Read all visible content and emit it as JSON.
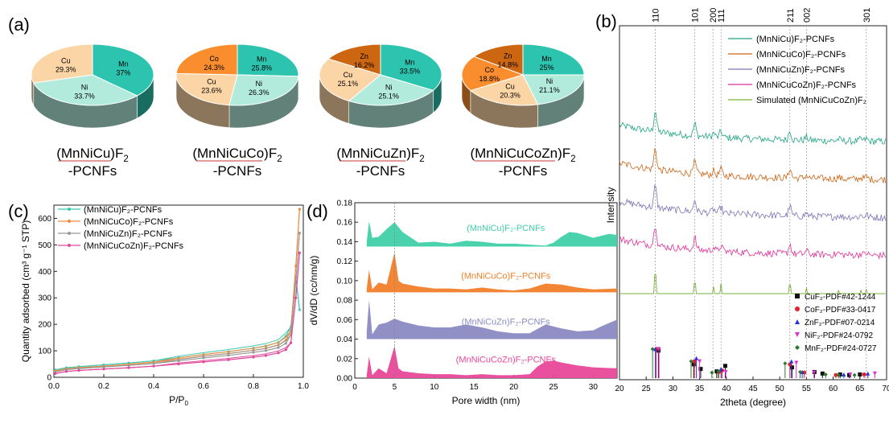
{
  "panel_labels": {
    "a": "(a)",
    "b": "(b)",
    "c": "(c)",
    "d": "(d)"
  },
  "chart_data": [
    {
      "type": "pie",
      "panel": "(a)",
      "pies": [
        {
          "name_main": "(MnNiCu)F",
          "name_sub": "2",
          "name_line2": "-PCNFs",
          "slices": [
            {
              "label": "Mn",
              "value": 37,
              "text": "37%",
              "color": "#2cc4ae"
            },
            {
              "label": "Ni",
              "value": 33.7,
              "text": "33.7%",
              "color": "#b2eadc"
            },
            {
              "label": "Cu",
              "value": 29.3,
              "text": "29.3%",
              "color": "#fcd5a6"
            }
          ]
        },
        {
          "name_main": "(MnNiCuCo)F",
          "name_sub": "2",
          "name_line2": "-PCNFs",
          "slices": [
            {
              "label": "Mn",
              "value": 25.8,
              "text": "25.8%",
              "color": "#2cc4ae"
            },
            {
              "label": "Ni",
              "value": 26.3,
              "text": "26.3%",
              "color": "#b2eadc"
            },
            {
              "label": "Cu",
              "value": 23.6,
              "text": "23.6%",
              "color": "#fcd5a6"
            },
            {
              "label": "Co",
              "value": 24.3,
              "text": "24.3%",
              "color": "#fa8e2e"
            }
          ]
        },
        {
          "name_main": "(MnNiCuZn)F",
          "name_sub": "2",
          "name_line2": "-PCNFs",
          "slices": [
            {
              "label": "Mn",
              "value": 33.5,
              "text": "33.5%",
              "color": "#2cc4ae"
            },
            {
              "label": "Ni",
              "value": 25.1,
              "text": "25.1%",
              "color": "#b2eadc"
            },
            {
              "label": "Cu",
              "value": 25.1,
              "text": "25.1%",
              "color": "#fcd5a6"
            },
            {
              "label": "Zn",
              "value": 16.2,
              "text": "16.2%",
              "color": "#cc6611"
            }
          ]
        },
        {
          "name_main": "(MnNiCuCoZn)F",
          "name_sub": "2",
          "name_line2": "-PCNFs",
          "slices": [
            {
              "label": "Mn",
              "value": 25,
              "text": "25%",
              "color": "#2cc4ae"
            },
            {
              "label": "Ni",
              "value": 21.1,
              "text": "21.1%",
              "color": "#b2eadc"
            },
            {
              "label": "Cu",
              "value": 20.3,
              "text": "20.3%",
              "color": "#fcd5a6"
            },
            {
              "label": "Co",
              "value": 18.8,
              "text": "18.8%",
              "color": "#fa8e2e"
            },
            {
              "label": "Zn",
              "value": 14.8,
              "text": "14.8%",
              "color": "#cc6611"
            }
          ]
        }
      ]
    },
    {
      "type": "line",
      "panel": "(c)",
      "xlabel": "P/P",
      "xlabel_sub": "0",
      "ylabel": "Quantity adsorbed (cm³ g⁻¹ STP)",
      "xlim": [
        0,
        1.0
      ],
      "ylim": [
        0,
        650
      ],
      "xticks": [
        "0.0",
        "0.2",
        "0.4",
        "0.6",
        "0.8",
        "1.0"
      ],
      "yticks": [
        "0",
        "100",
        "200",
        "300",
        "400",
        "500",
        "600"
      ],
      "legend_position": "top-left",
      "series": [
        {
          "name": "(MnNiCu)F₂-PCNFs",
          "color": "#3fc6b0",
          "x": [
            0.005,
            0.05,
            0.1,
            0.2,
            0.3,
            0.4,
            0.5,
            0.6,
            0.7,
            0.8,
            0.85,
            0.9,
            0.93,
            0.95,
            0.97,
            0.985
          ],
          "y": [
            28,
            36,
            40,
            47,
            54,
            62,
            74,
            86,
            97,
            110,
            118,
            132,
            155,
            190,
            380,
            255
          ]
        },
        {
          "name": "(MnNiCuCo)F₂-PCNFs",
          "color": "#f28a3c",
          "x": [
            0.005,
            0.05,
            0.1,
            0.2,
            0.3,
            0.4,
            0.5,
            0.6,
            0.7,
            0.8,
            0.85,
            0.9,
            0.93,
            0.95,
            0.97,
            0.985
          ],
          "y": [
            24,
            32,
            36,
            42,
            49,
            57,
            68,
            80,
            90,
            102,
            110,
            122,
            140,
            175,
            420,
            635
          ]
        },
        {
          "name": "(MnNiCuZn)F₂-PCNFs",
          "color": "#9a9a9a",
          "x": [
            0.005,
            0.05,
            0.1,
            0.2,
            0.3,
            0.4,
            0.5,
            0.6,
            0.7,
            0.8,
            0.85,
            0.9,
            0.93,
            0.95,
            0.97,
            0.985
          ],
          "y": [
            20,
            29,
            33,
            39,
            45,
            52,
            62,
            73,
            83,
            94,
            101,
            112,
            128,
            160,
            360,
            545
          ]
        },
        {
          "name": "(MnNiCuCoZn)F₂-PCNFs",
          "color": "#e0489a",
          "x": [
            0.005,
            0.05,
            0.1,
            0.2,
            0.3,
            0.4,
            0.5,
            0.6,
            0.7,
            0.8,
            0.85,
            0.9,
            0.93,
            0.95,
            0.97,
            0.985
          ],
          "y": [
            14,
            22,
            26,
            31,
            36,
            42,
            50,
            58,
            66,
            76,
            82,
            92,
            104,
            130,
            300,
            470
          ]
        }
      ]
    },
    {
      "type": "area",
      "panel": "(d)",
      "xlabel": "Pore width (nm)",
      "ylabel": "dV/dD (cc/nm/g)",
      "xlim": [
        0,
        33
      ],
      "ylim": [
        0,
        0.18
      ],
      "xticks": [
        "0",
        "5",
        "10",
        "15",
        "20",
        "25",
        "30"
      ],
      "yticks": [
        "0.00",
        "0.02",
        "0.04",
        "0.06",
        "0.08",
        "0.10",
        "0.12",
        "0.14",
        "0.16",
        "0.18"
      ],
      "series": [
        {
          "name": "(MnNiCu)F₂-PCNFs",
          "color": "#3fd0a8",
          "offset": 0.135,
          "x": [
            1.5,
            1.8,
            2.2,
            3,
            4,
            5,
            6,
            8,
            10,
            12,
            14,
            16,
            18,
            20,
            22,
            24,
            25,
            26,
            27,
            28,
            30,
            31,
            32,
            33
          ],
          "y": [
            0.005,
            0.026,
            0.009,
            0.01,
            0.018,
            0.025,
            0.015,
            0.004,
            0.005,
            0.003,
            0.006,
            0.005,
            0.003,
            0.003,
            0.002,
            0.001,
            0.004,
            0.01,
            0.015,
            0.014,
            0.009,
            0.011,
            0.013,
            0.012
          ]
        },
        {
          "name": "(MnNiCuCo)F₂-PCNFs",
          "color": "#f2802a",
          "offset": 0.088,
          "x": [
            1.5,
            1.8,
            2.2,
            3,
            4,
            5,
            5.5,
            6,
            8,
            10,
            12,
            14,
            16,
            18,
            20,
            22,
            24,
            26,
            28,
            30,
            33
          ],
          "y": [
            0.004,
            0.023,
            0.003,
            0.01,
            0.008,
            0.041,
            0.012,
            0.009,
            0.006,
            0.004,
            0.004,
            0.003,
            0.005,
            0.003,
            0.002,
            0.004,
            0.009,
            0.008,
            0.005,
            0.003,
            0.004
          ]
        },
        {
          "name": "(MnNiCuZn)F₂-PCNFs",
          "color": "#8a8ac4",
          "offset": 0.04,
          "x": [
            1.5,
            1.8,
            2.2,
            3,
            4,
            5,
            6,
            8,
            10,
            12,
            14,
            16,
            18,
            20,
            22,
            24,
            26,
            28,
            30,
            31,
            33
          ],
          "y": [
            0.008,
            0.04,
            0.005,
            0.015,
            0.017,
            0.021,
            0.018,
            0.014,
            0.012,
            0.012,
            0.015,
            0.012,
            0.008,
            0.006,
            0.006,
            0.015,
            0.011,
            0.008,
            0.009,
            0.013,
            0.02
          ]
        },
        {
          "name": "(MnNiCuCoZn)F₂-PCNFs",
          "color": "#e8489a",
          "offset": 0.0,
          "x": [
            1.5,
            1.8,
            2.2,
            3,
            4,
            5,
            5.5,
            6,
            8,
            10,
            12,
            14,
            16,
            18,
            20,
            22,
            23,
            24,
            25,
            26,
            28,
            30,
            33
          ],
          "y": [
            0.003,
            0.022,
            0.003,
            0.01,
            0.005,
            0.033,
            0.01,
            0.007,
            0.005,
            0.004,
            0.004,
            0.003,
            0.004,
            0.003,
            0.003,
            0.004,
            0.012,
            0.017,
            0.018,
            0.016,
            0.013,
            0.011,
            0.01
          ]
        }
      ]
    },
    {
      "type": "line",
      "panel": "(b)",
      "xlabel": "2theta (degree)",
      "ylabel": "Intensity",
      "xlim": [
        20,
        70
      ],
      "xticks": [
        "20",
        "25",
        "30",
        "35",
        "40",
        "45",
        "50",
        "55",
        "60",
        "65",
        "70"
      ],
      "hkl": [
        {
          "label": "110",
          "x": 26.7
        },
        {
          "label": "101",
          "x": 34.1
        },
        {
          "label": "200",
          "x": 37.5
        },
        {
          "label": "111",
          "x": 39.0
        },
        {
          "label": "211",
          "x": 51.9
        },
        {
          "label": "002",
          "x": 55.0
        },
        {
          "label": "301",
          "x": 66.2
        }
      ],
      "peaks": [
        {
          "x": 26.7,
          "h": 1.0
        },
        {
          "x": 34.1,
          "h": 0.55
        },
        {
          "x": 37.6,
          "h": 0.18
        },
        {
          "x": 39.0,
          "h": 0.28
        },
        {
          "x": 51.9,
          "h": 0.45
        },
        {
          "x": 55.0,
          "h": 0.15
        },
        {
          "x": 61.0,
          "h": 0.08
        },
        {
          "x": 65.2,
          "h": 0.09
        },
        {
          "x": 66.2,
          "h": 0.12
        }
      ],
      "series": [
        {
          "name": "(MnNiCu)F₂-PCNFs",
          "color": "#1fa583",
          "baseline": 0.62
        },
        {
          "name": "(MnNiCuCo)F₂-PCNFs",
          "color": "#cc6515",
          "baseline": 0.46
        },
        {
          "name": "(MnNiCuZn)F₂-PCNFs",
          "color": "#7a73b5",
          "baseline": 0.3
        },
        {
          "name": "(MnNiCuCoZn)F₂-PCNFs",
          "color": "#e0309a",
          "baseline": 0.14
        },
        {
          "name": "Simulated (MnNiCuCoZn)F₂",
          "color": "#7bb03c",
          "baseline": 0.0
        }
      ],
      "references": [
        {
          "name": "CuF₂-PDF#42-1244",
          "color": "#111111",
          "marker": "square",
          "x": [
            27.3,
            33.9,
            35.2,
            38.2,
            39.8,
            52.3,
            56.5,
            58.0,
            61.3,
            63.0,
            65.0
          ],
          "h": [
            0.9,
            0.45,
            0.3,
            0.22,
            0.4,
            0.35,
            0.2,
            0.15,
            0.12,
            0.1,
            0.12
          ]
        },
        {
          "name": "CoF₂-PDF#33-0417",
          "color": "#e8202a",
          "marker": "circle",
          "x": [
            26.9,
            34.0,
            38.6,
            39.2,
            51.9,
            54.6,
            60.5,
            65.8
          ],
          "h": [
            0.95,
            0.55,
            0.2,
            0.25,
            0.45,
            0.18,
            0.1,
            0.12
          ]
        },
        {
          "name": "ZnF₂-PDF#07-0214",
          "color": "#2233dd",
          "marker": "triangle-up",
          "x": [
            26.7,
            34.4,
            39.0,
            52.2,
            54.2,
            62.0,
            66.5
          ],
          "h": [
            0.95,
            0.65,
            0.3,
            0.55,
            0.2,
            0.12,
            0.15
          ]
        },
        {
          "name": "NiF₂-PDF#24-0792",
          "color": "#e030d0",
          "marker": "triangle-down",
          "x": [
            27.4,
            35.0,
            39.9,
            53.1,
            56.4,
            63.2,
            67.8
          ],
          "h": [
            0.95,
            0.55,
            0.2,
            0.5,
            0.18,
            0.12,
            0.15
          ]
        },
        {
          "name": "MnF₂-PDF#24-0727",
          "color": "#2a7a2a",
          "marker": "diamond",
          "x": [
            26.2,
            33.4,
            37.3,
            38.5,
            51.0,
            53.8,
            58.6,
            61.0,
            64.0
          ],
          "h": [
            0.95,
            0.55,
            0.18,
            0.22,
            0.48,
            0.2,
            0.12,
            0.1,
            0.1
          ]
        }
      ]
    }
  ]
}
